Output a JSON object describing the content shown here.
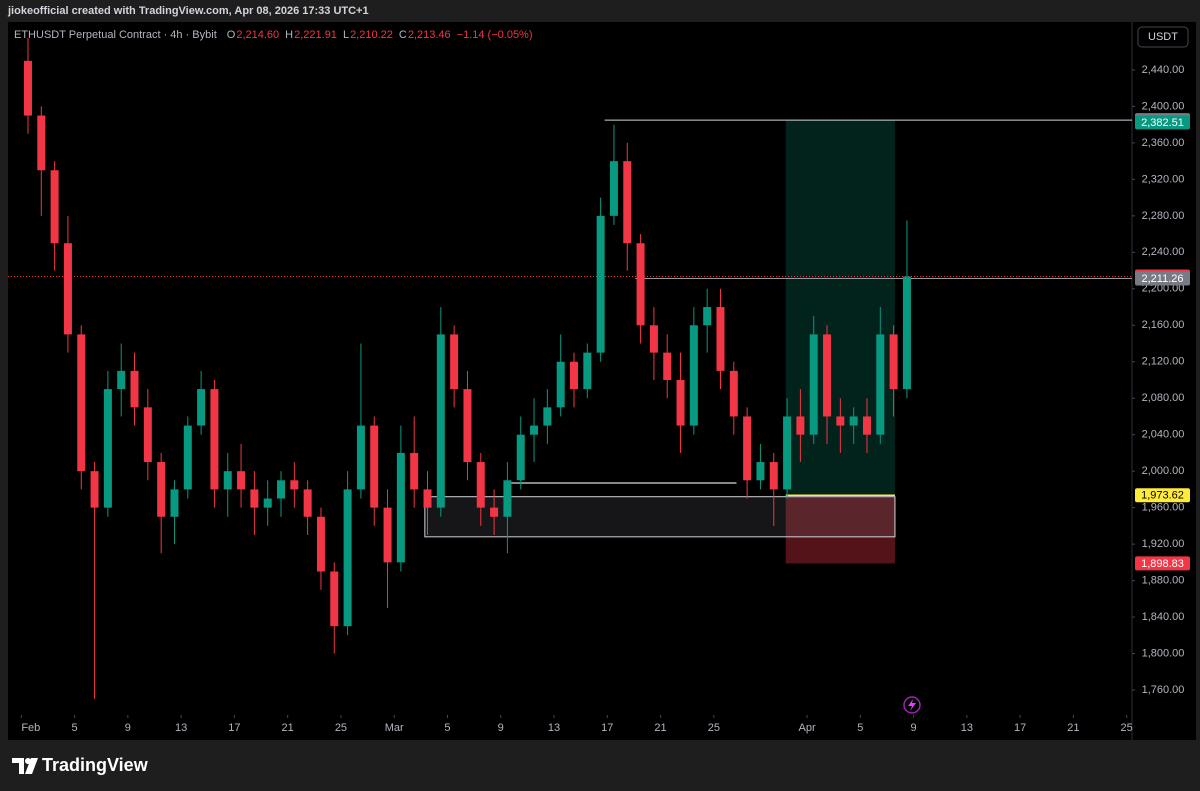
{
  "topbar": {
    "text": "jiokeofficial created with TradingView.com, Apr 08, 2026 17:33 UTC+1"
  },
  "footer": {
    "brand": "TradingView"
  },
  "chart_data": {
    "type": "candlestick",
    "symbol": "ETHUSDT Perpetual Contract · 4h · Bybit",
    "ohlc_legend": [
      {
        "label": "O",
        "value": "2,214.60"
      },
      {
        "label": "H",
        "value": "2,221.91"
      },
      {
        "label": "L",
        "value": "2,210.22"
      },
      {
        "label": "C",
        "value": "2,213.46"
      }
    ],
    "change": "−1.14 (−0.05%)",
    "currency": "USDT",
    "up_color": "#089981",
    "down_color": "#f23645",
    "grid": false,
    "open": [
      2450,
      2390,
      2330,
      2250,
      2150,
      2000,
      1960,
      2090,
      2110,
      2070,
      2010,
      1950,
      1980,
      2050,
      2090,
      1980,
      2000,
      1980,
      1960,
      1970,
      1990,
      1980,
      1950,
      1890,
      1830,
      1980,
      2050,
      1960,
      1900,
      2020,
      1980,
      1960,
      2150,
      2090,
      2010,
      1960,
      1950,
      1990,
      2040,
      2050,
      2070,
      2120,
      2090,
      2130,
      2280,
      2340,
      2250,
      2160,
      2130,
      2100,
      2050,
      2160,
      2180,
      2110,
      2060,
      1990,
      2010,
      1980,
      2060,
      2040,
      2150,
      2060,
      2050,
      2060,
      2040,
      2150,
      2090
    ],
    "high": [
      2475,
      2400,
      2340,
      2280,
      2160,
      2010,
      2110,
      2140,
      2130,
      2090,
      2020,
      1990,
      2060,
      2110,
      2100,
      2020,
      2030,
      2000,
      1990,
      2000,
      2010,
      1990,
      1960,
      1900,
      2000,
      2140,
      2060,
      1980,
      2050,
      2060,
      2000,
      2180,
      2160,
      2110,
      2020,
      1980,
      2010,
      2060,
      2080,
      2090,
      2150,
      2130,
      2140,
      2300,
      2380,
      2360,
      2260,
      2180,
      2150,
      2130,
      2180,
      2200,
      2200,
      2120,
      2070,
      2030,
      2020,
      2080,
      2090,
      2170,
      2160,
      2080,
      2070,
      2080,
      2180,
      2160,
      2275
    ],
    "low": [
      2370,
      2280,
      2220,
      2130,
      1980,
      1750,
      1950,
      2060,
      2050,
      1990,
      1910,
      1920,
      1970,
      2040,
      1960,
      1950,
      1960,
      1930,
      1940,
      1950,
      1960,
      1930,
      1870,
      1800,
      1820,
      1970,
      1940,
      1850,
      1890,
      1960,
      1930,
      1950,
      2070,
      1990,
      1940,
      1930,
      1910,
      1980,
      2010,
      2030,
      2060,
      2070,
      2080,
      2120,
      2270,
      2220,
      2140,
      2100,
      2080,
      2020,
      2040,
      2130,
      2090,
      2040,
      1970,
      1980,
      1940,
      1970,
      2010,
      2030,
      2030,
      2020,
      2030,
      2020,
      2030,
      2060,
      2080
    ],
    "close": [
      2390,
      2330,
      2250,
      2150,
      2000,
      1960,
      2090,
      2110,
      2070,
      2010,
      1950,
      1980,
      2050,
      2090,
      1980,
      2000,
      1980,
      1960,
      1970,
      1990,
      1980,
      1950,
      1890,
      1830,
      1980,
      2050,
      1960,
      1900,
      2020,
      1980,
      1960,
      2150,
      2090,
      2010,
      1960,
      1950,
      1990,
      2040,
      2050,
      2070,
      2120,
      2090,
      2130,
      2280,
      2340,
      2250,
      2160,
      2130,
      2100,
      2050,
      2160,
      2180,
      2110,
      2060,
      1990,
      2010,
      1980,
      2060,
      2040,
      2150,
      2060,
      2050,
      2060,
      2040,
      2150,
      2090,
      2213.46
    ],
    "xlim": [
      -1,
      83.4
    ],
    "xticks": [
      {
        "value": 0,
        "label": "Feb"
      },
      {
        "value": 4,
        "label": "5"
      },
      {
        "value": 8,
        "label": "9"
      },
      {
        "value": 12,
        "label": "13"
      },
      {
        "value": 16,
        "label": "17"
      },
      {
        "value": 20,
        "label": "21"
      },
      {
        "value": 24,
        "label": "25"
      },
      {
        "value": 28,
        "label": "Mar"
      },
      {
        "value": 32,
        "label": "5"
      },
      {
        "value": 36,
        "label": "9"
      },
      {
        "value": 40,
        "label": "13"
      },
      {
        "value": 44,
        "label": "17"
      },
      {
        "value": 48,
        "label": "21"
      },
      {
        "value": 52,
        "label": "25"
      },
      {
        "value": 59,
        "label": "Apr"
      },
      {
        "value": 63,
        "label": "5"
      },
      {
        "value": 67,
        "label": "9"
      },
      {
        "value": 71,
        "label": "13"
      },
      {
        "value": 75,
        "label": "17"
      },
      {
        "value": 79,
        "label": "21"
      },
      {
        "value": 83,
        "label": "25"
      }
    ],
    "ylim": [
      1732.6,
      2492.6
    ],
    "yticks": [
      {
        "value": 2440,
        "label": "2,440.00"
      },
      {
        "value": 2400,
        "label": "2,400.00"
      },
      {
        "value": 2360,
        "label": "2,360.00"
      },
      {
        "value": 2320,
        "label": "2,320.00"
      },
      {
        "value": 2280,
        "label": "2,280.00"
      },
      {
        "value": 2240,
        "label": "2,240.00"
      },
      {
        "value": 2200,
        "label": "2,200.00"
      },
      {
        "value": 2160,
        "label": "2,160.00"
      },
      {
        "value": 2120,
        "label": "2,120.00"
      },
      {
        "value": 2080,
        "label": "2,080.00"
      },
      {
        "value": 2040,
        "label": "2,040.00"
      },
      {
        "value": 2000,
        "label": "2,000.00"
      },
      {
        "value": 1960,
        "label": "1,960.00"
      },
      {
        "value": 1920,
        "label": "1,920.00"
      },
      {
        "value": 1880,
        "label": "1,880.00"
      },
      {
        "value": 1840,
        "label": "1,840.00"
      },
      {
        "value": 1800,
        "label": "1,800.00"
      },
      {
        "value": 1760,
        "label": "1,760.00"
      }
    ],
    "price_labels": [
      {
        "value": 2385,
        "label": "2,385.00",
        "color": "#787b86",
        "text_color": "#ffffff"
      },
      {
        "value": 2382.51,
        "label": "2,382.51",
        "color": "#089981",
        "text_color": "#ffffff"
      },
      {
        "value": 2213.46,
        "label": "2,213.46",
        "color": "#f23645",
        "text_color": "#ffffff"
      },
      {
        "value": 2211.26,
        "label": "2,211.26",
        "color": "#787b86",
        "text_color": "#ffffff"
      },
      {
        "value": 1973.62,
        "label": "1,973.62",
        "color": "#ffeb3b",
        "text_color": "#000000"
      },
      {
        "value": 1898.83,
        "label": "1,898.83",
        "color": "#f23645",
        "text_color": "#ffffff"
      }
    ],
    "current_price": 2213.46,
    "drawings": {
      "range_box": {
        "top": 1972,
        "bottom": 1928,
        "start": 30.3,
        "end": 65.6
      },
      "support_line": {
        "price": 1987,
        "start": 36.7,
        "end": 53.7
      },
      "high_line": {
        "price": 2385,
        "start": 43.8
      },
      "level_line": {
        "price": 2211.26,
        "start": 46.1
      },
      "position": {
        "start": 57.4,
        "end": 65.6,
        "target": 2385,
        "entry": 1973.62,
        "stop": 1898.83
      }
    }
  }
}
